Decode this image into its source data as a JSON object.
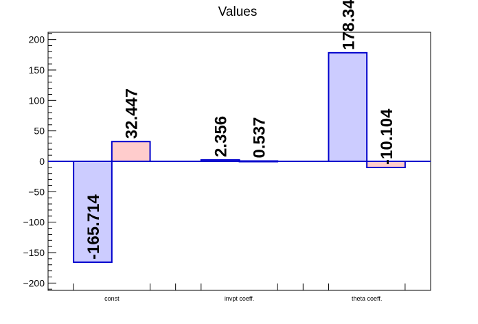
{
  "chart_data": {
    "type": "bar",
    "title": "Values",
    "xlabel": "",
    "ylabel": "",
    "categories": [
      "const",
      "invpt coeff.",
      "theta coeff."
    ],
    "series": [
      {
        "values": [
          -165.714,
          2.356,
          178.34
        ],
        "color": "#ccccff"
      },
      {
        "values": [
          32.447,
          0.537,
          -10.104
        ],
        "color": "#ffcccc"
      }
    ],
    "data_labels": [
      [
        "-165.714",
        "2.356",
        "178.34"
      ],
      [
        "32.447",
        "0.537",
        "-10.104"
      ]
    ],
    "ylim": [
      -212,
      212
    ],
    "yticks": [
      -200,
      -150,
      -100,
      -50,
      0,
      50,
      100,
      150,
      200
    ],
    "ytick_labels": [
      "−200",
      "−150",
      "−100",
      "−50",
      "0",
      "50",
      "100",
      "150",
      "200"
    ],
    "outline_color": "#0000cc",
    "grid": false,
    "legend": "none"
  }
}
